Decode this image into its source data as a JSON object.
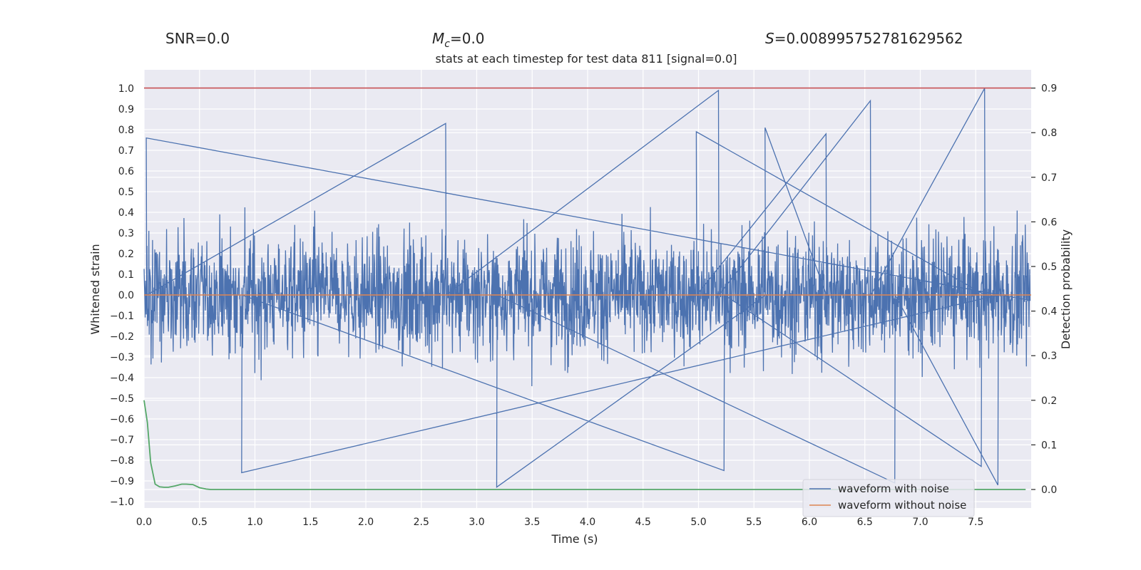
{
  "chart_data": {
    "type": "line",
    "suptitles": {
      "snr": "SNR=0.0",
      "mc_symbol": "M",
      "mc_sub": "c",
      "mc_value": "=0.0",
      "s_symbol": "S",
      "s_value": "=0.008995752781629562"
    },
    "title": "stats at each timestep for test data 811 [signal=0.0]",
    "xlabel": "Time (s)",
    "ylabel": "Whitened strain",
    "y2label": "Detection probability",
    "xlim": [
      0.0,
      8.0
    ],
    "ylim": [
      -1.03,
      1.1
    ],
    "y2lim": [
      -0.04,
      0.96
    ],
    "xticks": [
      "0.0",
      "0.5",
      "1.0",
      "1.5",
      "2.0",
      "2.5",
      "3.0",
      "3.5",
      "4.0",
      "4.5",
      "5.0",
      "5.5",
      "6.0",
      "6.5",
      "7.0",
      "7.5"
    ],
    "yticks": [
      "1.0",
      "0.9",
      "0.8",
      "0.7",
      "0.6",
      "0.5",
      "0.4",
      "0.3",
      "0.2",
      "0.1",
      "0.0",
      "−0.1",
      "−0.2",
      "−0.3",
      "−0.4",
      "−0.5",
      "−0.6",
      "−0.7",
      "−0.8",
      "−0.9",
      "−1.0"
    ],
    "y2ticks": [
      "0.9",
      "0.8",
      "0.7",
      "0.6",
      "0.5",
      "0.4",
      "0.3",
      "0.2",
      "0.1",
      "0.0"
    ],
    "threshold": 0.9,
    "grid": true,
    "legend_placement": "lower-right",
    "series": [
      {
        "name": "waveform with noise",
        "color": "#4c72b0",
        "description_values": {
          "peaks_pos": [
            [
              0.02,
              0.76
            ],
            [
              2.72,
              0.83
            ],
            [
              5.18,
              0.99
            ],
            [
              6.55,
              0.94
            ],
            [
              7.58,
              1.0
            ],
            [
              4.98,
              0.79
            ],
            [
              6.15,
              0.78
            ],
            [
              5.6,
              0.81
            ]
          ],
          "peaks_neg": [
            [
              3.18,
              -0.93
            ],
            [
              6.77,
              -0.91
            ],
            [
              7.7,
              -0.92
            ],
            [
              0.88,
              -0.86
            ],
            [
              5.23,
              -0.85
            ],
            [
              7.55,
              -0.83
            ]
          ],
          "typical_amplitude": 0.55
        }
      },
      {
        "name": "waveform without noise",
        "color": "#dd8452",
        "values_note": "",
        "x": [
          0.0,
          8.0
        ],
        "y": [
          0.0,
          0.0
        ]
      },
      {
        "name": "",
        "color": "#55a868",
        "axis": "right",
        "x": [
          0.0,
          0.03,
          0.06,
          0.1,
          0.14,
          0.18,
          0.22,
          0.28,
          0.34,
          0.38,
          0.44,
          0.5,
          0.56,
          0.6,
          1.0,
          2.0,
          3.0,
          4.0,
          5.0,
          6.0,
          7.0,
          7.95
        ],
        "y": [
          0.2,
          0.15,
          0.06,
          0.012,
          0.006,
          0.005,
          0.005,
          0.008,
          0.012,
          0.012,
          0.011,
          0.004,
          0.001,
          0.0,
          0.0,
          0.0,
          0.0,
          0.0,
          0.0,
          0.0,
          0.0,
          0.0
        ]
      }
    ],
    "colors": {
      "background": "#eaeaf2",
      "grid": "#ffffff",
      "threshold": "#c44e52"
    }
  }
}
